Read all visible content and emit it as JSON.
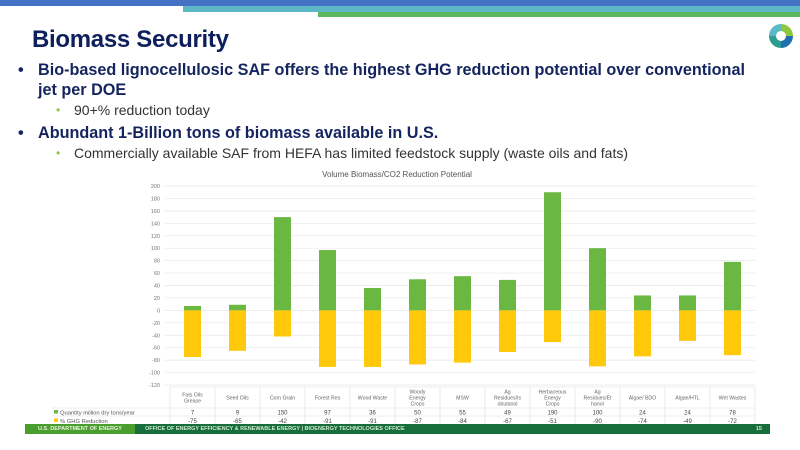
{
  "slide": {
    "title": "Biomass Security",
    "logo": "doe-eere-logo-icon",
    "bullets": [
      {
        "text": "Bio-based lignocellulosic SAF offers the highest GHG reduction potential over conventional jet per DOE",
        "line1": "Bio-based lignocellulosic SAF offers the highest GHG reduction potential over conventional",
        "line2": "jet per DOE",
        "sub": [
          "90+% reduction today"
        ]
      },
      {
        "text": "Abundant 1-Billion tons of biomass available in U.S.",
        "sub": [
          "Commercially available SAF from HEFA has limited feedstock supply (waste oils and fats)"
        ]
      }
    ]
  },
  "footer": {
    "left": "U.S. DEPARTMENT OF ENERGY",
    "middle": "OFFICE OF ENERGY EFFICIENCY & RENEWABLE ENERGY  |  BIOENERGY TECHNOLOGIES OFFICE",
    "page": "15"
  },
  "colors": {
    "quantity": "#6ab742",
    "ghg": "#ffc80a",
    "title": "#0d1f5c",
    "footer": "#176e3b"
  },
  "chart_data": {
    "type": "bar",
    "title": "Volume Biomass/CO2 Reduction Potential",
    "categories": [
      "Fats Oils Grease",
      "Seed Oils",
      "Corn Grain",
      "Forest Res",
      "Wood Waste",
      "Woody Energy Crops",
      "MSW",
      "Ag Residues/Isobutanol",
      "Herbaceous Energy Crops",
      "Ag Residues/Ethanol",
      "Algae/ BDO",
      "Algae/HTL",
      "Wet Wastes"
    ],
    "category_lines": [
      [
        "Fats Oils",
        "Grease"
      ],
      [
        "Seed Oils"
      ],
      [
        "Corn Grain"
      ],
      [
        "Forest Res"
      ],
      [
        "Wood Waste"
      ],
      [
        "Woody",
        "Energy",
        "Crops"
      ],
      [
        "MSW"
      ],
      [
        "Ag",
        "Residues/Is",
        "obutanol"
      ],
      [
        "Herbaceous",
        "Energy",
        "Crops"
      ],
      [
        "Ag",
        "Residues/Et",
        "hanol"
      ],
      [
        "Algae/ BDO"
      ],
      [
        "Algae/HTL"
      ],
      [
        "Wet Wastes"
      ]
    ],
    "series": [
      {
        "name": "Quantity million dry tons/year",
        "values": [
          7,
          9,
          150,
          97,
          36,
          50,
          55,
          49,
          190,
          100,
          24,
          24,
          78
        ]
      },
      {
        "name": "% GHG Reduction",
        "values": [
          -75,
          -65,
          -42,
          -91,
          -91,
          -87,
          -84,
          -67,
          -51,
          -90,
          -74,
          -49,
          -72
        ]
      }
    ],
    "ylim": [
      -120,
      200
    ],
    "yticks": [
      200,
      180,
      160,
      140,
      120,
      100,
      80,
      60,
      40,
      20,
      0,
      -20,
      -40,
      -60,
      -80,
      -100,
      -120
    ],
    "grid": true,
    "legend": "bottom-left data table",
    "xlabel": "",
    "ylabel": ""
  }
}
